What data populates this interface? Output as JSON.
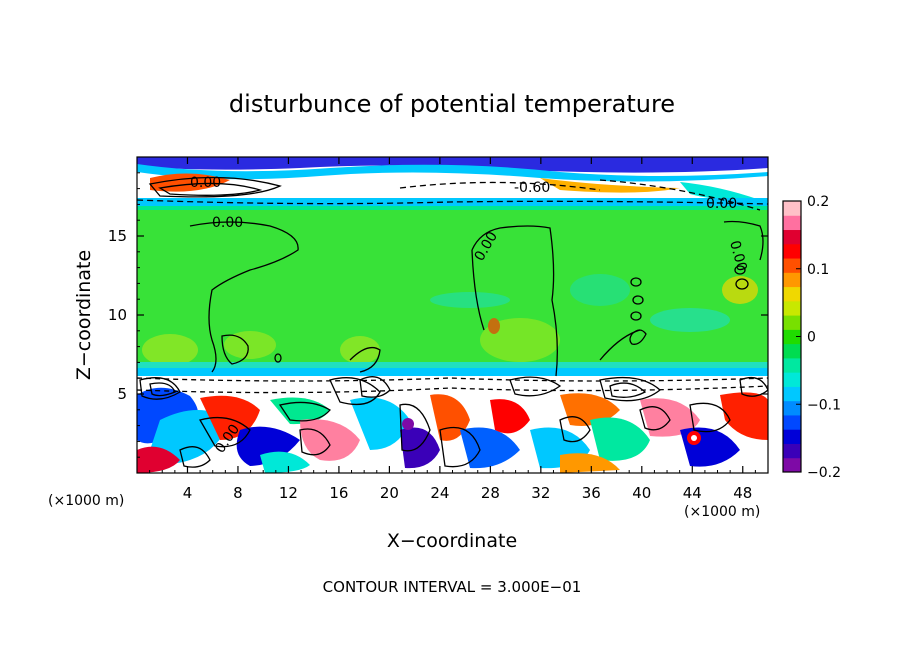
{
  "chart_data": {
    "type": "heatmap",
    "title": "disturbunce of potential temperature",
    "xlabel": "X−coordinate",
    "ylabel": "Z−coordinate",
    "x_unit_left": "(×1000 m)",
    "x_unit_right": "(×1000 m)",
    "xlim": [
      0,
      50
    ],
    "ylim": [
      0,
      20
    ],
    "x_ticks": [
      4,
      8,
      12,
      16,
      20,
      24,
      28,
      32,
      36,
      40,
      44,
      48
    ],
    "x_tick_labels": [
      "4",
      "8",
      "12",
      "16",
      "20",
      "24",
      "28",
      "32",
      "36",
      "40",
      "44",
      "48"
    ],
    "y_ticks": [
      5,
      10,
      15
    ],
    "y_tick_labels": [
      "5",
      "10",
      "15"
    ],
    "colorbar": {
      "range": [
        -0.2,
        0.2
      ],
      "ticks": [
        0.2,
        0.1,
        0,
        -0.1,
        -0.2
      ],
      "tick_labels": [
        "0.2",
        "0.1",
        "0",
        "−0.1",
        "−0.2"
      ],
      "colors": [
        "#7e0aa6",
        "#3a00b8",
        "#0000d8",
        "#0048ff",
        "#008cff",
        "#00c8ff",
        "#00e8d8",
        "#00e8a0",
        "#00dc50",
        "#20dc00",
        "#78e000",
        "#c8e800",
        "#f0d800",
        "#ff9800",
        "#ff5000",
        "#ff0000",
        "#e00030",
        "#ff70a0",
        "#ffc0c8"
      ]
    },
    "contour_labels": [
      "0.00",
      "-0.60",
      "0.00",
      "0.00",
      "0.00",
      "0.00",
      "0.00"
    ],
    "contour_interval_text": "CONTOUR INTERVAL = 3.000E−01"
  }
}
